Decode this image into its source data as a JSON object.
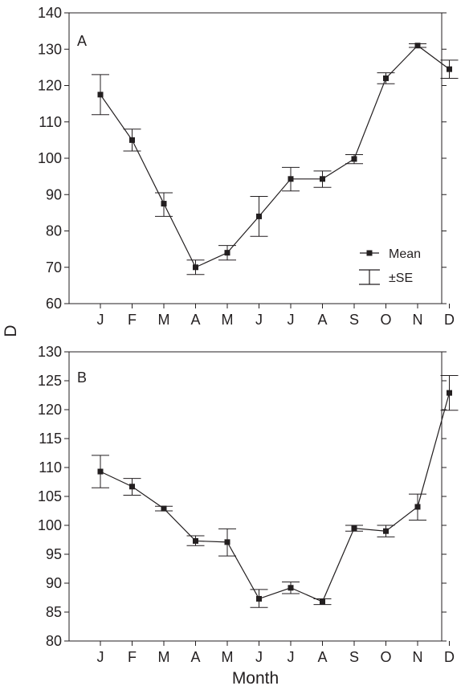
{
  "chart_data": [
    {
      "type": "line",
      "panel_label": "A",
      "categories": [
        "J",
        "F",
        "M",
        "A",
        "M",
        "J",
        "J",
        "A",
        "S",
        "O",
        "N",
        "D"
      ],
      "series": [
        {
          "name": "Mean",
          "values": [
            117.5,
            105,
            87.5,
            70,
            74,
            84,
            94.3,
            94.3,
            99.8,
            122,
            131,
            124.5
          ],
          "se_upper": [
            123,
            108,
            90.5,
            72,
            76,
            89.5,
            97.5,
            96.5,
            101,
            123.5,
            131.5,
            127
          ],
          "se_lower": [
            112,
            102,
            84,
            68,
            72,
            78.5,
            91,
            92,
            98.5,
            120.5,
            130.5,
            122
          ]
        }
      ],
      "ylim": [
        60,
        140
      ],
      "yticks": [
        60,
        70,
        80,
        90,
        100,
        110,
        120,
        130,
        140
      ],
      "legend": {
        "mean_label": "Mean",
        "se_label": "±SE",
        "placement": "bottom-right"
      }
    },
    {
      "type": "line",
      "panel_label": "B",
      "categories": [
        "J",
        "F",
        "M",
        "A",
        "M",
        "J",
        "J",
        "A",
        "S",
        "O",
        "N",
        "D"
      ],
      "series": [
        {
          "name": "Mean",
          "values": [
            109.3,
            106.7,
            102.9,
            97.3,
            97.1,
            87.3,
            89.2,
            86.8,
            99.5,
            99,
            103.2,
            122.9
          ],
          "se_upper": [
            112.1,
            108.1,
            103.3,
            98.2,
            99.4,
            88.9,
            90.2,
            87.3,
            100,
            100,
            105.4,
            125.9
          ],
          "se_lower": [
            106.5,
            105.2,
            102.5,
            96.5,
            94.7,
            85.8,
            88.2,
            86.3,
            99,
            98,
            100.9,
            119.9
          ]
        }
      ],
      "ylim": [
        80,
        130
      ],
      "yticks": [
        80,
        85,
        90,
        95,
        100,
        105,
        110,
        115,
        120,
        125,
        130
      ]
    }
  ],
  "ylabel": "D",
  "xlabel": "Month"
}
